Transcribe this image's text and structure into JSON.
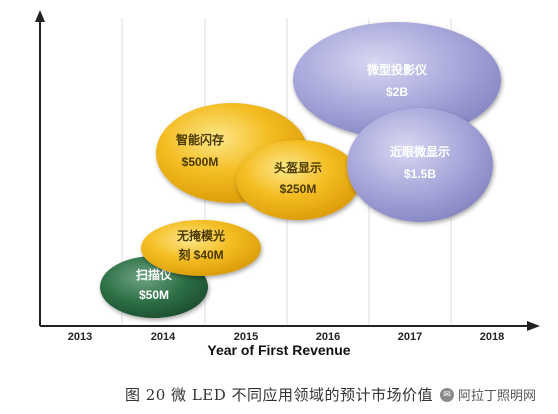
{
  "chart_data": {
    "type": "bubble",
    "title": "",
    "xlabel": "Year of First Revenue",
    "ylabel": "",
    "categories": [
      "2013",
      "2014",
      "2015",
      "2016",
      "2017",
      "2018"
    ],
    "bubbles": [
      {
        "name": "扫描仪",
        "value_label": "$50M",
        "year": 2014,
        "color": "#2e7046"
      },
      {
        "name": "无掩模光刻",
        "value_label": "$40M",
        "year": 2014.5,
        "color": "#f2b714"
      },
      {
        "name": "智能闪存",
        "value_label": "$500M",
        "year": 2014.7,
        "color": "#f2b714"
      },
      {
        "name": "头盔显示",
        "value_label": "$250M",
        "year": 2015.6,
        "color": "#f2b714"
      },
      {
        "name": "微型投影仪",
        "value_label": "$2B",
        "year": 2016.7,
        "color": "#a3a3d6"
      },
      {
        "name": "近眼微显示",
        "value_label": "$1.5B",
        "year": 2017.2,
        "color": "#a3a3d6"
      }
    ],
    "grid": true,
    "legend": "none"
  },
  "caption": "图 20 微 LED 不同应用领域的预计市场价值",
  "watermark": "阿拉丁照明网"
}
